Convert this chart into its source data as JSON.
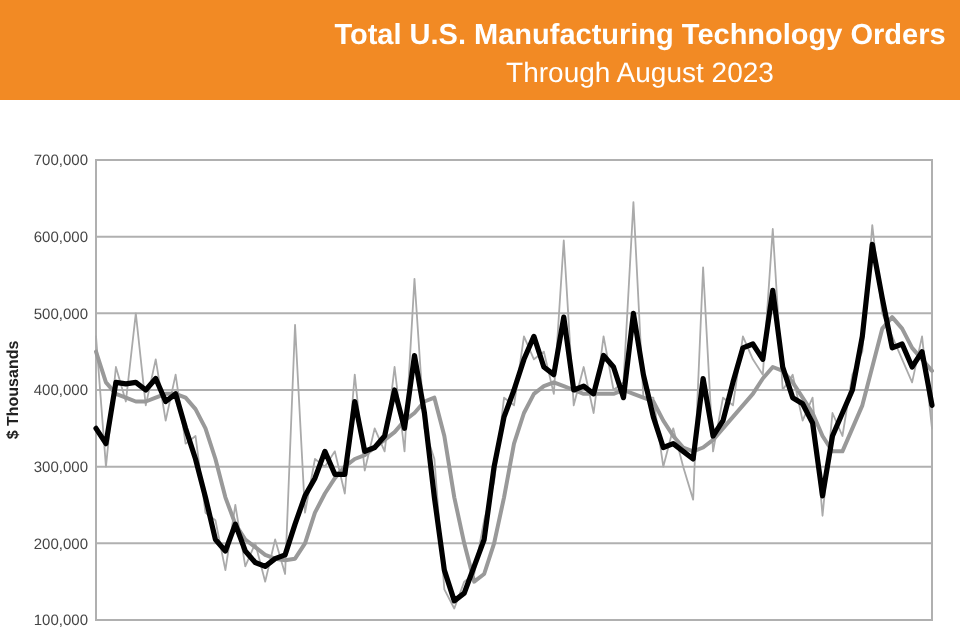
{
  "chart_data": {
    "type": "line",
    "title": "Total U.S. Manufacturing Technology Orders",
    "subtitle": "Through August 2023",
    "ylabel": "$ Thousands",
    "categories": [
      null,
      null,
      null,
      null,
      null,
      null,
      null,
      null,
      null,
      null,
      null,
      null,
      null,
      null,
      null,
      null,
      null,
      null,
      null,
      null,
      null,
      null,
      null,
      null,
      null,
      null,
      null,
      null,
      null,
      null,
      null,
      null,
      null,
      null,
      null,
      null,
      null,
      null,
      null,
      null,
      null,
      null,
      null,
      null,
      null,
      null,
      null,
      null,
      null,
      null,
      null,
      null,
      null,
      null,
      null,
      null,
      null,
      null,
      null,
      null,
      null,
      null,
      null,
      null,
      null,
      null,
      null,
      null,
      null,
      null,
      null,
      null,
      null,
      null,
      null,
      null,
      null,
      null,
      null,
      null,
      null,
      null,
      null,
      null,
      null
    ],
    "series": [
      {
        "color": "#aaaaaa",
        "values": [
          470000,
          300000,
          430000,
          385000,
          500000,
          380000,
          440000,
          360000,
          420000,
          330000,
          340000,
          240000,
          230000,
          165000,
          250000,
          170000,
          200000,
          150000,
          205000,
          160000,
          485000,
          240000,
          310000,
          300000,
          320000,
          265000,
          420000,
          295000,
          350000,
          320000,
          430000,
          320000,
          545000,
          350000,
          310000,
          140000,
          115000,
          150000,
          160000,
          230000,
          280000,
          390000,
          380000,
          470000,
          440000,
          450000,
          395000,
          595000,
          380000,
          430000,
          370000,
          470000,
          400000,
          410000,
          645000,
          390000,
          390000,
          300000,
          350000,
          300000,
          257000,
          560000,
          320000,
          390000,
          380000,
          470000,
          440000,
          420000,
          610000,
          400000,
          420000,
          360000,
          390000,
          236000,
          370000,
          340000,
          420000,
          450000,
          615000,
          500000,
          470000,
          440000,
          410000,
          470000,
          350000
        ]
      },
      {
        "color": "#999999",
        "values": [
          450000,
          410000,
          395000,
          390000,
          385000,
          385000,
          390000,
          395000,
          395000,
          390000,
          375000,
          350000,
          310000,
          260000,
          225000,
          205000,
          195000,
          185000,
          180000,
          178000,
          180000,
          200000,
          240000,
          265000,
          285000,
          300000,
          310000,
          315000,
          325000,
          335000,
          345000,
          360000,
          370000,
          385000,
          390000,
          340000,
          260000,
          200000,
          150000,
          160000,
          200000,
          260000,
          330000,
          370000,
          395000,
          405000,
          410000,
          405000,
          400000,
          395000,
          395000,
          395000,
          395000,
          400000,
          395000,
          390000,
          385000,
          360000,
          340000,
          325000,
          320000,
          325000,
          335000,
          350000,
          365000,
          380000,
          395000,
          415000,
          430000,
          425000,
          410000,
          390000,
          370000,
          340000,
          320000,
          320000,
          350000,
          380000,
          430000,
          480000,
          495000,
          480000,
          455000,
          440000,
          425000
        ]
      },
      {
        "color": "#000000",
        "values": [
          350000,
          330000,
          410000,
          408000,
          410000,
          400000,
          415000,
          385000,
          395000,
          350000,
          310000,
          260000,
          205000,
          190000,
          225000,
          190000,
          175000,
          170000,
          180000,
          185000,
          225000,
          262000,
          285000,
          320000,
          290000,
          290000,
          385000,
          320000,
          325000,
          340000,
          400000,
          350000,
          445000,
          370000,
          260000,
          165000,
          125000,
          135000,
          170000,
          205000,
          300000,
          365000,
          400000,
          440000,
          470000,
          430000,
          420000,
          495000,
          400000,
          405000,
          395000,
          445000,
          430000,
          390000,
          500000,
          420000,
          365000,
          325000,
          330000,
          320000,
          310000,
          415000,
          340000,
          360000,
          410000,
          455000,
          460000,
          440000,
          530000,
          430000,
          390000,
          382000,
          357000,
          262000,
          340000,
          370000,
          400000,
          470000,
          590000,
          520000,
          455000,
          460000,
          430000,
          450000,
          380000
        ]
      }
    ],
    "ylim": [
      100000,
      700000
    ],
    "yticks": [
      {
        "value": 100000,
        "label": "100,000"
      },
      {
        "value": 200000,
        "label": "200,000"
      },
      {
        "value": 300000,
        "label": "300,000"
      },
      {
        "value": 400000,
        "label": "400,000"
      },
      {
        "value": 500000,
        "label": "500,000"
      },
      {
        "value": 600000,
        "label": "600,000"
      },
      {
        "value": 700000,
        "label": "700,000"
      }
    ],
    "grid": "y",
    "marker": "none",
    "line_style": "solid",
    "tick_labels": "y"
  }
}
